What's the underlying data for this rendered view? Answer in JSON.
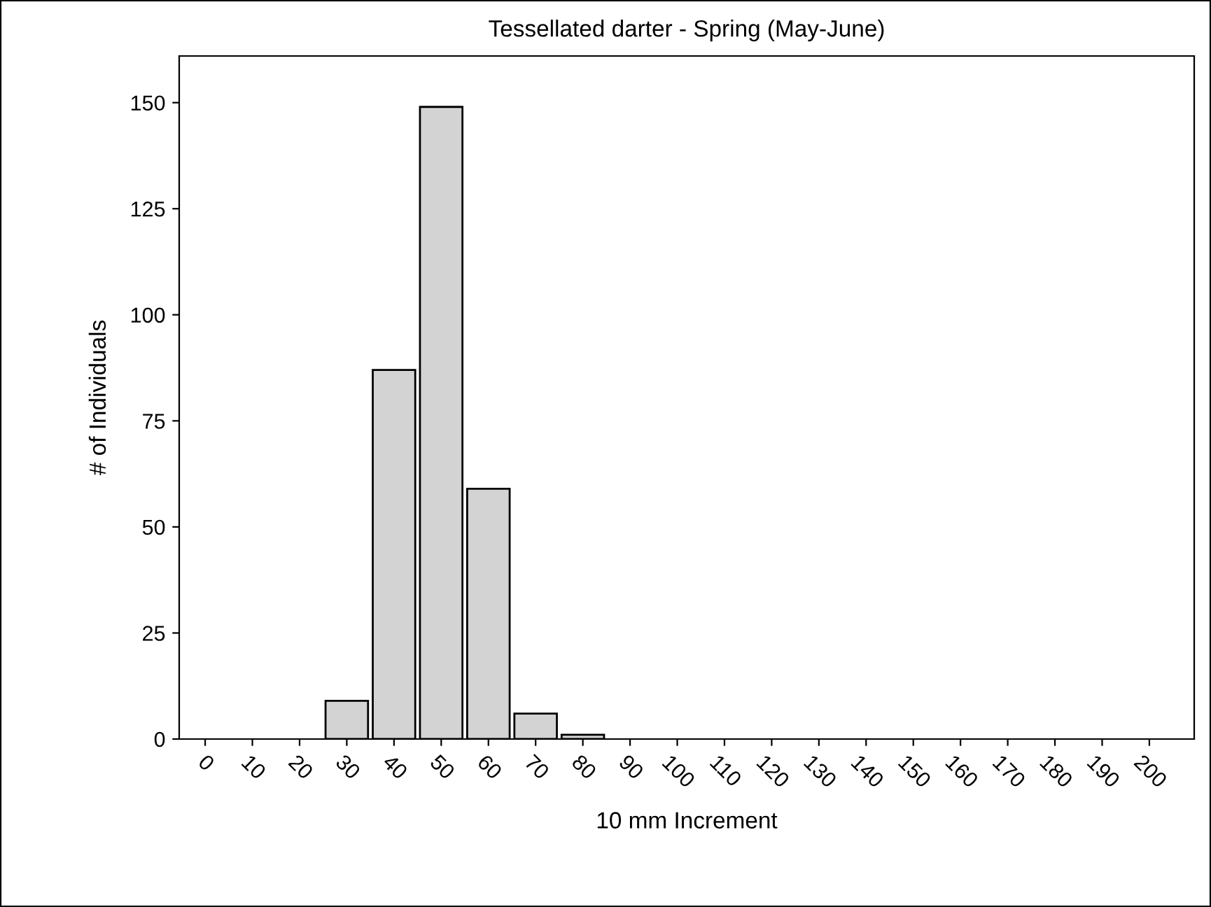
{
  "chart_data": {
    "type": "bar",
    "title": "Tessellated darter - Spring (May-June)",
    "xlabel": "10 mm Increment",
    "ylabel": "# of Individuals",
    "categories": [
      "0",
      "10",
      "20",
      "30",
      "40",
      "50",
      "60",
      "70",
      "80",
      "90",
      "100",
      "110",
      "120",
      "130",
      "140",
      "150",
      "160",
      "170",
      "180",
      "190",
      "200"
    ],
    "values": [
      0,
      0,
      0,
      9,
      87,
      149,
      59,
      6,
      1,
      0,
      0,
      0,
      0,
      0,
      0,
      0,
      0,
      0,
      0,
      0,
      0
    ],
    "color": "#d3d3d3",
    "ylim": [
      0,
      161
    ],
    "yticks": [
      0,
      25,
      50,
      75,
      100,
      125,
      150
    ],
    "grid": false
  }
}
